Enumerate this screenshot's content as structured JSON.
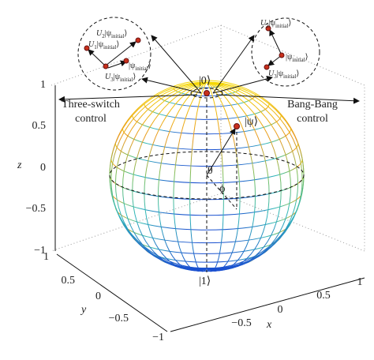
{
  "axes": {
    "z": {
      "label": "z",
      "ticks": [
        "1",
        "0.5",
        "0",
        "−0.5",
        "−1"
      ]
    },
    "y": {
      "label": "y",
      "ticks": [
        "1",
        "0.5",
        "0",
        "−0.5",
        "−1"
      ]
    },
    "x": {
      "label": "x",
      "ticks": [
        "−0.5",
        "0",
        "0.5",
        "1"
      ]
    }
  },
  "states": {
    "north": "|0⟩",
    "south": "|1⟩",
    "psi": "|ψ⟩",
    "theta": "θ",
    "phi": "ϕ"
  },
  "controls": {
    "left": [
      "Three-switch",
      "control"
    ],
    "right": [
      "Bang-Bang",
      "control"
    ]
  },
  "insets": {
    "left": [
      {
        "prefix": "U",
        "index": "2",
        "ket": "|ψ",
        "subscript": "initial",
        "close": "⟩"
      },
      {
        "prefix": "U",
        "index": "1",
        "ket": "|ψ",
        "subscript": "initial",
        "close": "⟩"
      },
      {
        "ket": "|ψ",
        "subscript": "initial",
        "close": "⟩"
      },
      {
        "prefix": "U",
        "index": "3",
        "ket": "|ψ",
        "subscript": "initial",
        "close": "⟩"
      }
    ],
    "right": [
      {
        "prefix": "U",
        "index": "2",
        "ket": "|ψ",
        "subscript": "initial",
        "close": "⟩"
      },
      {
        "ket": "|ψ",
        "subscript": "initial",
        "close": "⟩"
      },
      {
        "prefix": "U",
        "index": "3",
        "ket": "|ψ",
        "subscript": "initial",
        "close": "⟩"
      }
    ]
  }
}
